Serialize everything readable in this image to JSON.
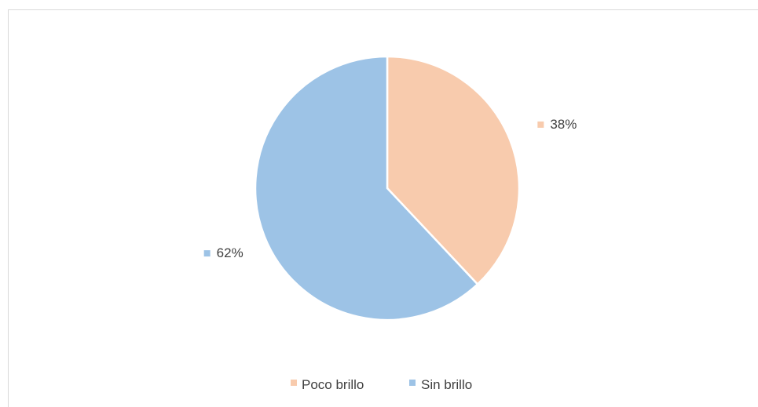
{
  "chart_data": {
    "type": "pie",
    "categories": [
      "Poco brillo",
      "Sin brillo"
    ],
    "values": [
      38,
      62
    ],
    "data_labels": [
      "38%",
      "62%"
    ],
    "colors": [
      "#f8cbad",
      "#9dc3e6"
    ],
    "start_angle_deg": 0,
    "direction": "clockwise",
    "legend_position": "bottom",
    "title": ""
  },
  "legend": {
    "items": [
      {
        "label": "Poco brillo",
        "color": "#f8cbad"
      },
      {
        "label": "Sin brillo",
        "color": "#9dc3e6"
      }
    ]
  }
}
